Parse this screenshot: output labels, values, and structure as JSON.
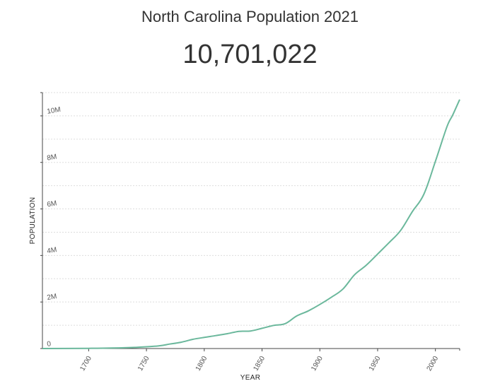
{
  "header": {
    "title": "North Carolina Population 2021",
    "population_value": "10,701,022"
  },
  "colors": {
    "line": "#6bb89c",
    "grid": "#dddddd",
    "axis": "#444444"
  },
  "chart_data": {
    "type": "line",
    "title": "North Carolina Population 2021",
    "xlabel": "YEAR",
    "ylabel": "POPULATION",
    "xlim": [
      1660,
      2021
    ],
    "ylim": [
      0,
      11000000
    ],
    "grid": true,
    "x_ticks": [
      {
        "value": 1700,
        "label": "1700"
      },
      {
        "value": 1750,
        "label": "1750"
      },
      {
        "value": 1800,
        "label": "1800"
      },
      {
        "value": 1850,
        "label": "1850"
      },
      {
        "value": 1900,
        "label": "1900"
      },
      {
        "value": 1950,
        "label": "1950"
      },
      {
        "value": 2000,
        "label": "2000"
      }
    ],
    "y_ticks": [
      {
        "value": 0,
        "label": "0"
      },
      {
        "value": 2000000,
        "label": "2M"
      },
      {
        "value": 4000000,
        "label": "4M"
      },
      {
        "value": 6000000,
        "label": "6M"
      },
      {
        "value": 8000000,
        "label": "8M"
      },
      {
        "value": 10000000,
        "label": "10M"
      }
    ],
    "grid_values": [
      1000000,
      2000000,
      3000000,
      4000000,
      5000000,
      6000000,
      7000000,
      8000000,
      9000000,
      10000000,
      11000000
    ],
    "series": [
      {
        "name": "Population",
        "x": [
          1660,
          1700,
          1720,
          1740,
          1760,
          1770,
          1780,
          1790,
          1800,
          1810,
          1820,
          1830,
          1840,
          1850,
          1860,
          1870,
          1880,
          1890,
          1900,
          1910,
          1920,
          1930,
          1940,
          1950,
          1960,
          1970,
          1980,
          1990,
          2000,
          2010,
          2015,
          2021
        ],
        "values": [
          0,
          10000,
          20000,
          50000,
          110000,
          190000,
          270000,
          394000,
          478000,
          555000,
          638000,
          737000,
          753000,
          869000,
          993000,
          1071000,
          1400000,
          1618000,
          1894000,
          2206000,
          2559000,
          3170000,
          3572000,
          4062000,
          4556000,
          5082000,
          5882000,
          6629000,
          8049000,
          9535000,
          10040000,
          10701022
        ]
      }
    ]
  }
}
